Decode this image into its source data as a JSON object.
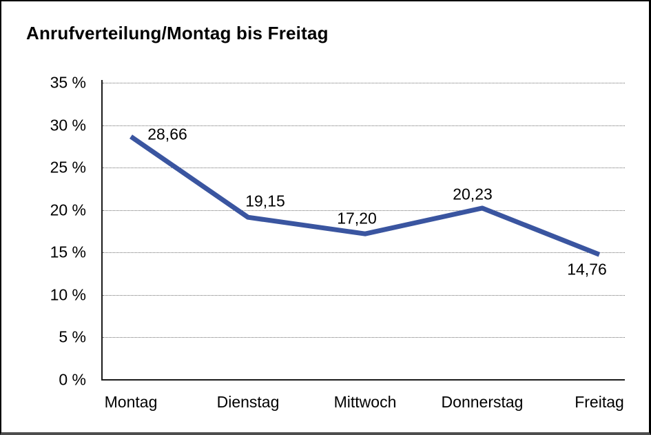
{
  "chart_data": {
    "type": "line",
    "title": "Anrufverteilung/Montag bis Freitag",
    "categories": [
      "Montag",
      "Dienstag",
      "Mittwoch",
      "Donnerstag",
      "Freitag"
    ],
    "values": [
      28.66,
      19.15,
      17.2,
      20.23,
      14.76
    ],
    "point_labels": [
      "28,66",
      "19,15",
      "17,20",
      "20,23",
      "14,76"
    ],
    "y_ticks": [
      "0 %",
      "5 %",
      "10 %",
      "15 %",
      "20 %",
      "25 %",
      "30 %",
      "35 %"
    ],
    "ylim": [
      0,
      35
    ],
    "y_tick_step": 5,
    "xlabel": "",
    "ylabel": "",
    "legend": "none",
    "grid": "horizontal-dotted",
    "line_color": "#3A55A0",
    "text_color": "#000000"
  }
}
